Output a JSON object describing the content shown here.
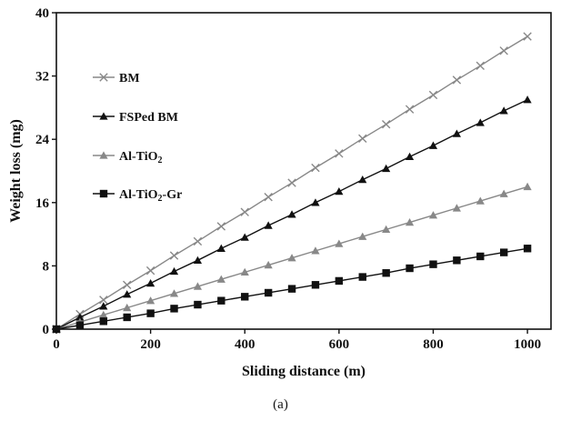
{
  "caption": "(a)",
  "chart_data": {
    "type": "line",
    "title": "",
    "xlabel": "Sliding distance (m)",
    "ylabel": "Weight loss (mg)",
    "xlim": [
      0,
      1050
    ],
    "ylim": [
      0,
      40
    ],
    "xticks": [
      0,
      200,
      400,
      600,
      800,
      1000
    ],
    "yticks": [
      0,
      8,
      16,
      24,
      32,
      40
    ],
    "grid": false,
    "legend_position": "top-left",
    "x": [
      0,
      50,
      100,
      150,
      200,
      250,
      300,
      350,
      400,
      450,
      500,
      550,
      600,
      650,
      700,
      750,
      800,
      850,
      900,
      950,
      1000
    ],
    "series": [
      {
        "name": "BM",
        "marker": "x",
        "color": "#888888",
        "values": [
          0,
          1.9,
          3.7,
          5.6,
          7.4,
          9.3,
          11.1,
          13.0,
          14.8,
          16.7,
          18.5,
          20.4,
          22.2,
          24.1,
          25.9,
          27.8,
          29.6,
          31.5,
          33.3,
          35.2,
          37.0
        ]
      },
      {
        "name": "FSPed BM",
        "marker": "triangle",
        "color": "#111111",
        "values": [
          0,
          1.5,
          2.9,
          4.4,
          5.8,
          7.3,
          8.7,
          10.2,
          11.6,
          13.1,
          14.5,
          16.0,
          17.4,
          18.9,
          20.3,
          21.8,
          23.2,
          24.7,
          26.1,
          27.6,
          29.0
        ]
      },
      {
        "name": "Al-TiO2",
        "marker": "triangle",
        "color": "#888888",
        "values": [
          0,
          0.9,
          1.8,
          2.7,
          3.6,
          4.5,
          5.4,
          6.3,
          7.2,
          8.1,
          9.0,
          9.9,
          10.8,
          11.7,
          12.6,
          13.5,
          14.4,
          15.3,
          16.2,
          17.1,
          18.0
        ]
      },
      {
        "name": "Al-TiO2-Gr",
        "marker": "square",
        "color": "#111111",
        "values": [
          0,
          0.5,
          1.0,
          1.5,
          2.0,
          2.6,
          3.1,
          3.6,
          4.1,
          4.6,
          5.1,
          5.6,
          6.1,
          6.6,
          7.1,
          7.7,
          8.2,
          8.7,
          9.2,
          9.7,
          10.2
        ]
      }
    ]
  }
}
